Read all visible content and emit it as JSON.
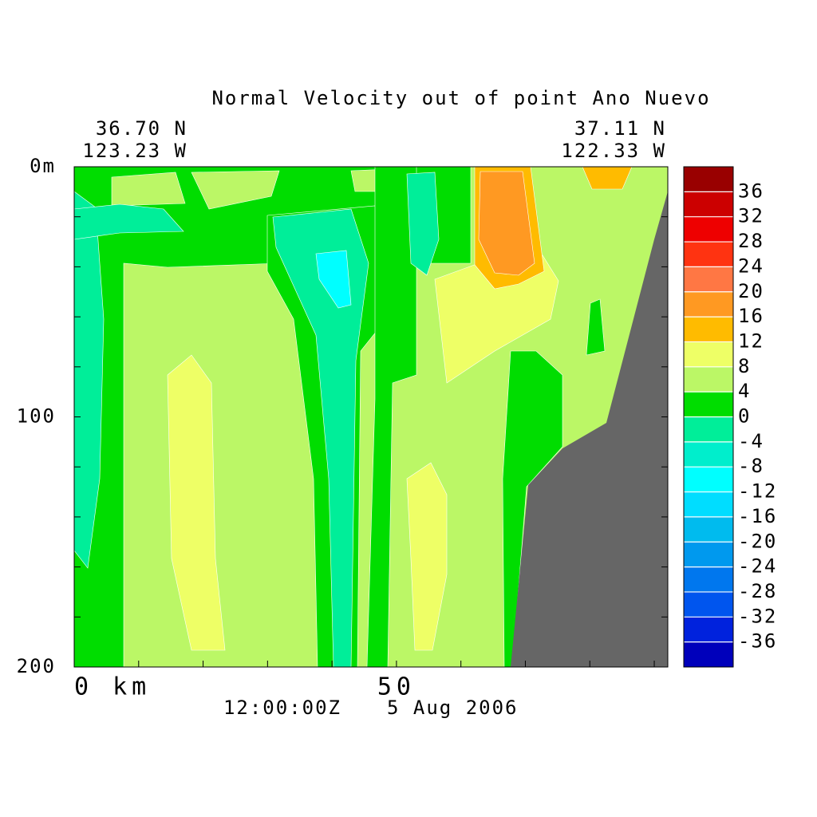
{
  "chart_data": {
    "type": "contour",
    "title": "Normal Velocity out of point Ano Nuevo",
    "start_lat": "36.70 N",
    "start_lon": "123.23 W",
    "end_lat": "37.11 N",
    "end_lon": "122.33 W",
    "time": "12:00:00Z",
    "date": "5 Aug 2006",
    "xlim": [
      0,
      92.1
    ],
    "xticks": [
      {
        "value": 0,
        "label": "0 km"
      },
      50
    ],
    "xminorticks": [
      10,
      20,
      30,
      40,
      60,
      70,
      80,
      90
    ],
    "ylim": [
      0,
      200
    ],
    "yticks": [
      {
        "value": 0,
        "label": "0m"
      },
      100,
      200
    ],
    "yminorticks": [
      20,
      40,
      60,
      80,
      120,
      140,
      160,
      180
    ],
    "land_color": "#666666",
    "colorbar": {
      "levels": [
        -40,
        -36,
        -32,
        -28,
        -24,
        -20,
        -16,
        -12,
        -8,
        -4,
        0,
        4,
        8,
        12,
        16,
        20,
        24,
        28,
        32,
        36,
        40
      ],
      "colors": [
        "#0000bb",
        "#0022dd",
        "#0055ee",
        "#0077ee",
        "#0099ee",
        "#00bbee",
        "#00ddff",
        "#00ffff",
        "#00eecc",
        "#00ee99",
        "#00dd00",
        "#bbf766",
        "#eeff66",
        "#ffbb00",
        "#ff9922",
        "#ff7744",
        "#ff3311",
        "#ee0000",
        "#cc0000",
        "#990000"
      ],
      "ticks": [
        -36,
        -32,
        -28,
        -24,
        -20,
        -16,
        -12,
        -8,
        -4,
        0,
        4,
        8,
        12,
        16,
        20,
        24,
        28,
        32,
        36
      ]
    }
  }
}
